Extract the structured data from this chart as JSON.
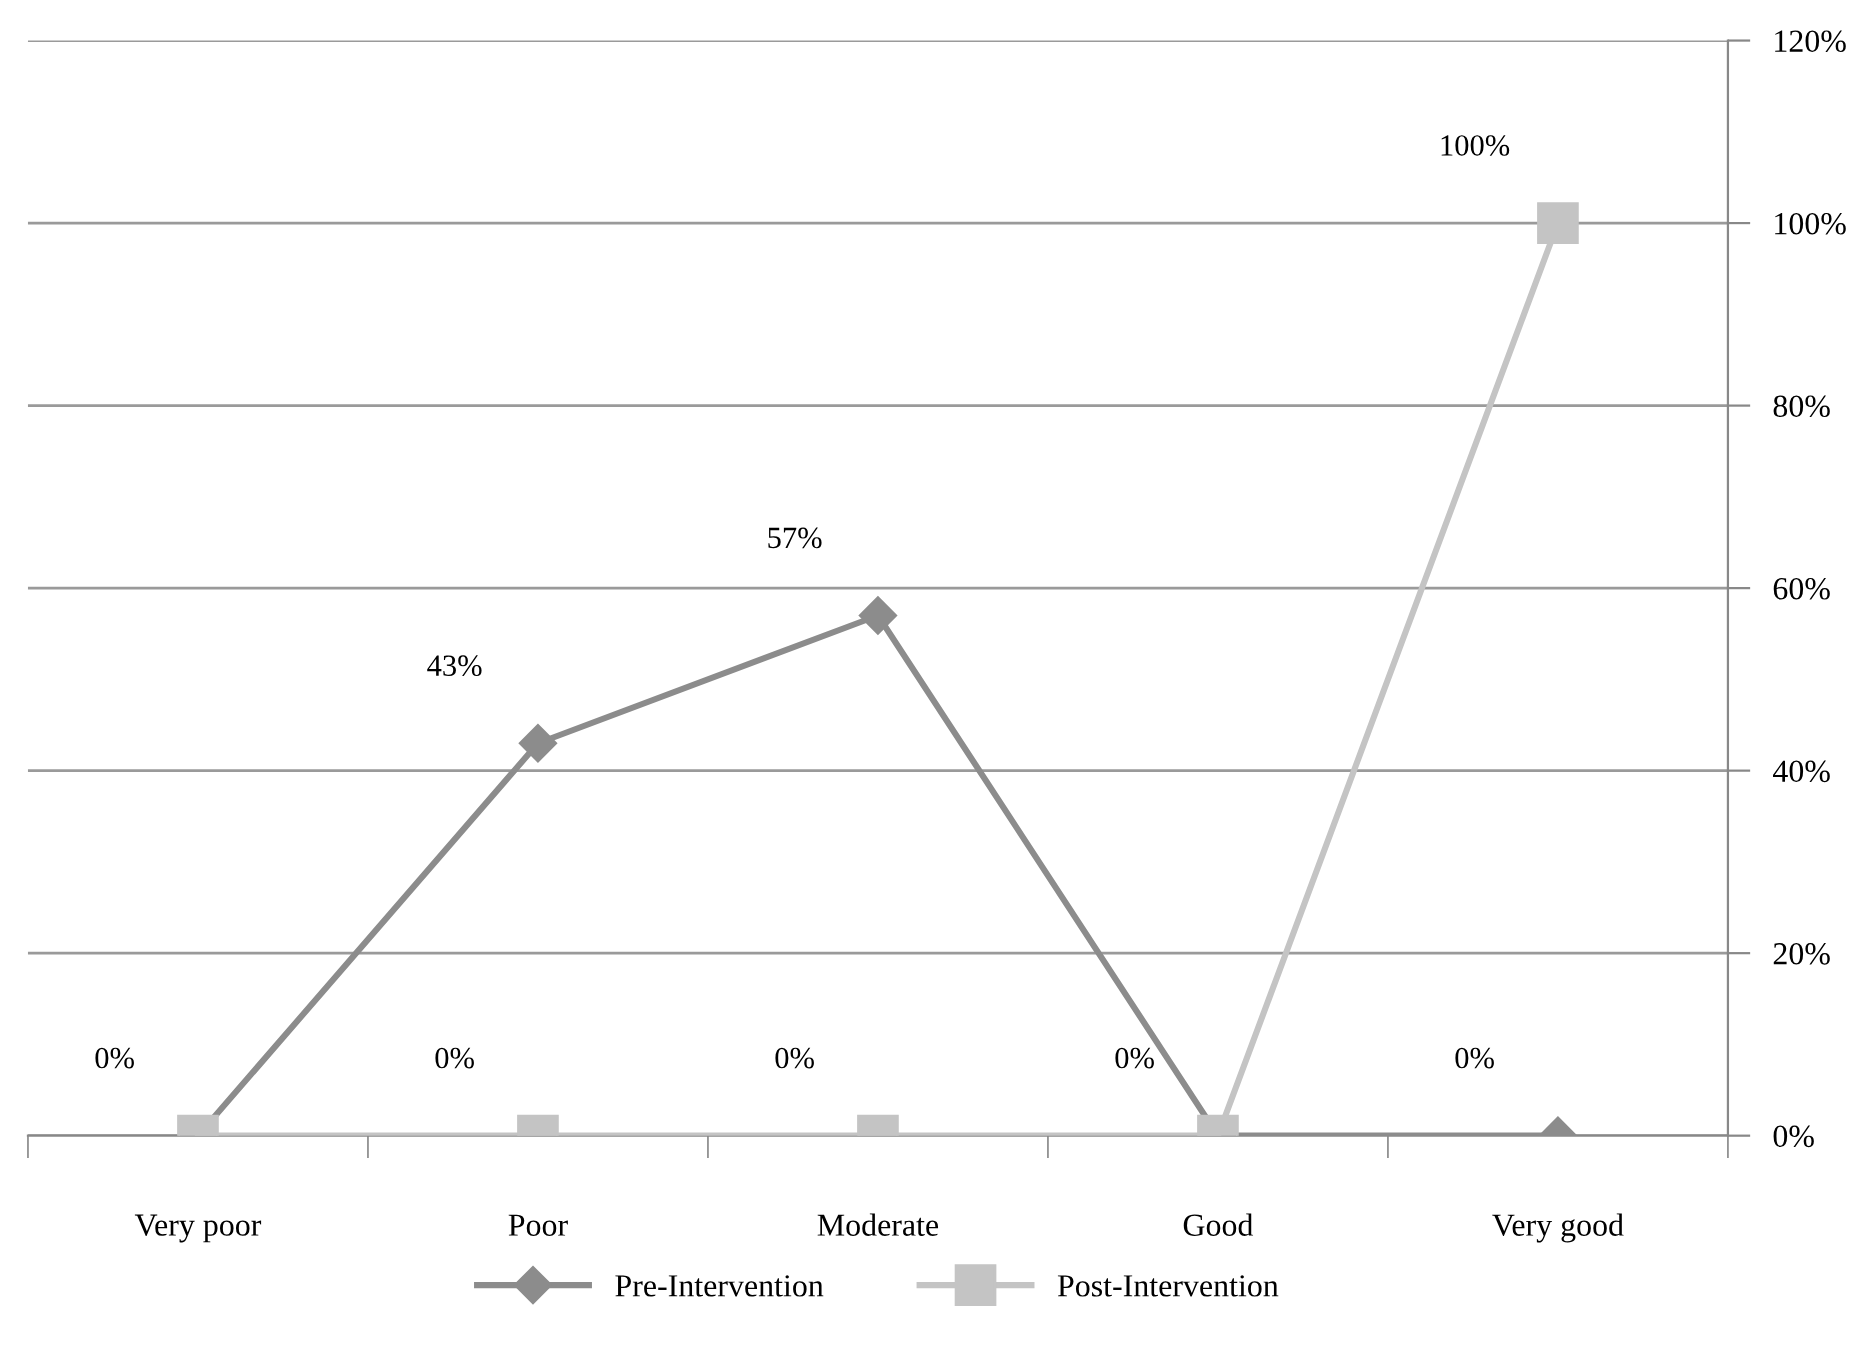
{
  "chart_data": {
    "type": "line",
    "categories": [
      "Very poor",
      "Poor",
      "Moderate",
      "Good",
      "Very good"
    ],
    "series": [
      {
        "name": "Pre-Intervention",
        "color": "#8c8c8c",
        "marker": "diamond",
        "values": [
          0,
          43,
          57,
          0,
          0
        ],
        "value_labels": [
          "0%",
          "43%",
          "57%",
          "0%",
          "0%"
        ]
      },
      {
        "name": "Post-Intervention",
        "color": "#c4c4c4",
        "marker": "square",
        "values": [
          0,
          0,
          0,
          0,
          100
        ],
        "value_labels": [
          null,
          "0%",
          "0%",
          null,
          "100%"
        ]
      }
    ],
    "ylim": [
      0,
      120
    ],
    "yticks": [
      {
        "value": 0,
        "label": "0%"
      },
      {
        "value": 20,
        "label": "20%"
      },
      {
        "value": 40,
        "label": "40%"
      },
      {
        "value": 60,
        "label": "60%"
      },
      {
        "value": 80,
        "label": "80%"
      },
      {
        "value": 100,
        "label": "100%"
      },
      {
        "value": 120,
        "label": "120%"
      }
    ],
    "grid": "y",
    "legend": "bottom",
    "line_style": "solid"
  }
}
